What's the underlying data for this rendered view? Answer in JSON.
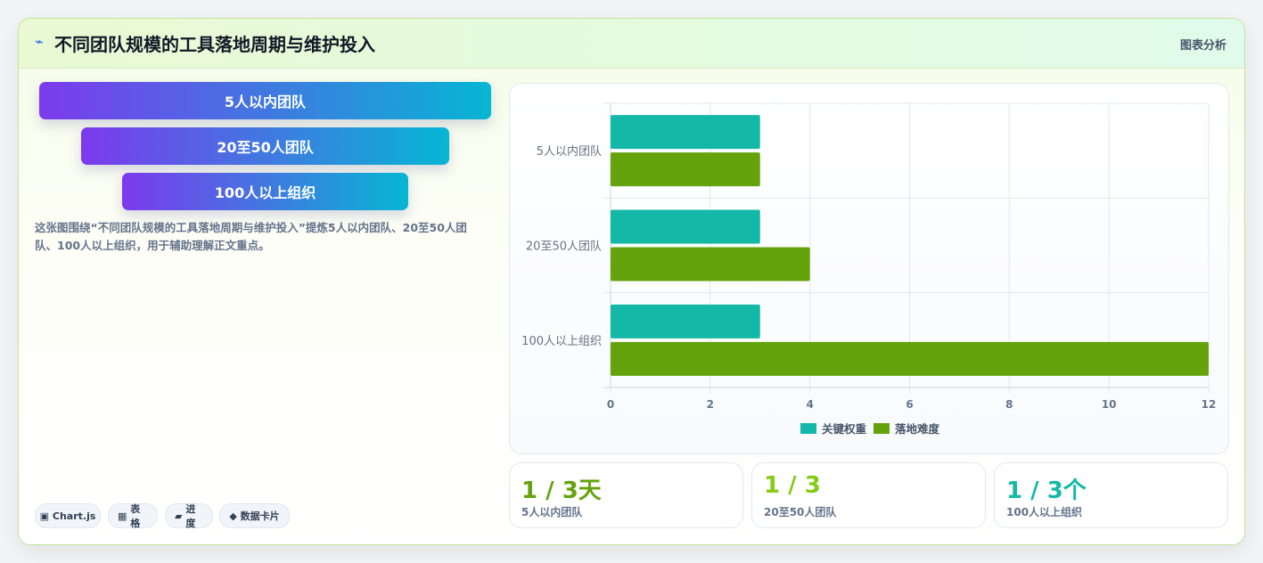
{
  "header": {
    "icon": "lightning-icon",
    "title": "不同团队规模的工具落地周期与维护投入",
    "link_label": "图表分析"
  },
  "funnel": [
    {
      "label": "5人以内团队"
    },
    {
      "label": "20至50人团队"
    },
    {
      "label": "100人以上组织"
    }
  ],
  "description": "这张图围绕“不同团队规模的工具落地周期与维护投入”提炼5人以内团队、20至50人团队、100人以上组织，用于辅助理解正文重点。",
  "chips": [
    {
      "icon": "▣",
      "label": "Chart.js"
    },
    {
      "icon": "▦",
      "label": "表格"
    },
    {
      "icon": "▰",
      "label": "进度"
    },
    {
      "icon": "◆",
      "label": "数据卡片"
    }
  ],
  "stats": [
    {
      "value": "1 / 3天",
      "label": "5人以内团队",
      "color": "#65a30d"
    },
    {
      "value": "1 / 3",
      "label": "20至50人团队",
      "color": "#84cc16"
    },
    {
      "value": "1 / 3个",
      "label": "100人以上组织",
      "color": "#14b8a6"
    }
  ],
  "chart_data": {
    "type": "bar",
    "orientation": "horizontal",
    "categories": [
      "5人以内团队",
      "20至50人团队",
      "100人以上组织"
    ],
    "series": [
      {
        "name": "关键权重",
        "values": [
          3,
          3,
          3
        ],
        "color": "#14b8a6"
      },
      {
        "name": "落地难度",
        "values": [
          3,
          4,
          12
        ],
        "color": "#65a30d"
      }
    ],
    "xlim": [
      0,
      12
    ],
    "xticks": [
      0,
      2,
      4,
      6,
      8,
      10,
      12
    ],
    "grid": true,
    "legend": "bottom"
  }
}
